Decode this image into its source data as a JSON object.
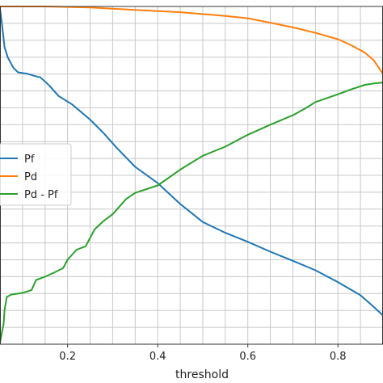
{
  "chart_data": {
    "type": "line",
    "title": "",
    "xlabel": "threshold",
    "ylabel": "",
    "xlim": [
      0.05,
      0.9
    ],
    "ylim": [
      0.0,
      1.0
    ],
    "x_major_ticks": [
      0.2,
      0.4,
      0.6,
      0.8
    ],
    "x_tick_labels": [
      "0.2",
      "0.4",
      "0.6",
      "0.8"
    ],
    "x_minor_step": 0.05,
    "y_grid_step": 0.05,
    "grid": true,
    "legend": {
      "placement": "left",
      "entries": [
        "Pf",
        "Pd",
        "Pd - Pf"
      ]
    },
    "series": [
      {
        "name": "Pf",
        "color": "#1f77b4",
        "points": [
          [
            0.05,
            0.993
          ],
          [
            0.055,
            0.94
          ],
          [
            0.06,
            0.88
          ],
          [
            0.067,
            0.85
          ],
          [
            0.075,
            0.83
          ],
          [
            0.08,
            0.818
          ],
          [
            0.09,
            0.805
          ],
          [
            0.11,
            0.801
          ],
          [
            0.125,
            0.795
          ],
          [
            0.14,
            0.79
          ],
          [
            0.16,
            0.765
          ],
          [
            0.18,
            0.735
          ],
          [
            0.21,
            0.71
          ],
          [
            0.25,
            0.665
          ],
          [
            0.28,
            0.625
          ],
          [
            0.31,
            0.58
          ],
          [
            0.35,
            0.525
          ],
          [
            0.4,
            0.477
          ],
          [
            0.45,
            0.415
          ],
          [
            0.5,
            0.362
          ],
          [
            0.55,
            0.33
          ],
          [
            0.6,
            0.303
          ],
          [
            0.65,
            0.274
          ],
          [
            0.7,
            0.247
          ],
          [
            0.75,
            0.219
          ],
          [
            0.8,
            0.184
          ],
          [
            0.85,
            0.145
          ],
          [
            0.88,
            0.11
          ],
          [
            0.9,
            0.085
          ]
        ]
      },
      {
        "name": "Pd",
        "color": "#ff7f0e",
        "points": [
          [
            0.05,
            1.0
          ],
          [
            0.15,
            1.0
          ],
          [
            0.25,
            0.997
          ],
          [
            0.35,
            0.99
          ],
          [
            0.45,
            0.983
          ],
          [
            0.55,
            0.972
          ],
          [
            0.6,
            0.965
          ],
          [
            0.65,
            0.952
          ],
          [
            0.7,
            0.938
          ],
          [
            0.75,
            0.922
          ],
          [
            0.8,
            0.903
          ],
          [
            0.83,
            0.885
          ],
          [
            0.86,
            0.863
          ],
          [
            0.88,
            0.84
          ],
          [
            0.9,
            0.8
          ]
        ]
      },
      {
        "name": "Pd - Pf",
        "color": "#2ca02c",
        "points": [
          [
            0.05,
            0.005
          ],
          [
            0.055,
            0.04
          ],
          [
            0.058,
            0.06
          ],
          [
            0.06,
            0.1
          ],
          [
            0.065,
            0.14
          ],
          [
            0.075,
            0.147
          ],
          [
            0.1,
            0.152
          ],
          [
            0.12,
            0.16
          ],
          [
            0.13,
            0.19
          ],
          [
            0.15,
            0.2
          ],
          [
            0.17,
            0.212
          ],
          [
            0.19,
            0.225
          ],
          [
            0.2,
            0.25
          ],
          [
            0.22,
            0.28
          ],
          [
            0.24,
            0.29
          ],
          [
            0.26,
            0.34
          ],
          [
            0.28,
            0.365
          ],
          [
            0.3,
            0.385
          ],
          [
            0.31,
            0.4
          ],
          [
            0.33,
            0.43
          ],
          [
            0.35,
            0.448
          ],
          [
            0.4,
            0.47
          ],
          [
            0.45,
            0.517
          ],
          [
            0.5,
            0.558
          ],
          [
            0.55,
            0.585
          ],
          [
            0.6,
            0.62
          ],
          [
            0.65,
            0.65
          ],
          [
            0.7,
            0.678
          ],
          [
            0.73,
            0.7
          ],
          [
            0.75,
            0.717
          ],
          [
            0.8,
            0.74
          ],
          [
            0.83,
            0.755
          ],
          [
            0.86,
            0.768
          ],
          [
            0.88,
            0.772
          ],
          [
            0.9,
            0.775
          ]
        ]
      }
    ]
  }
}
